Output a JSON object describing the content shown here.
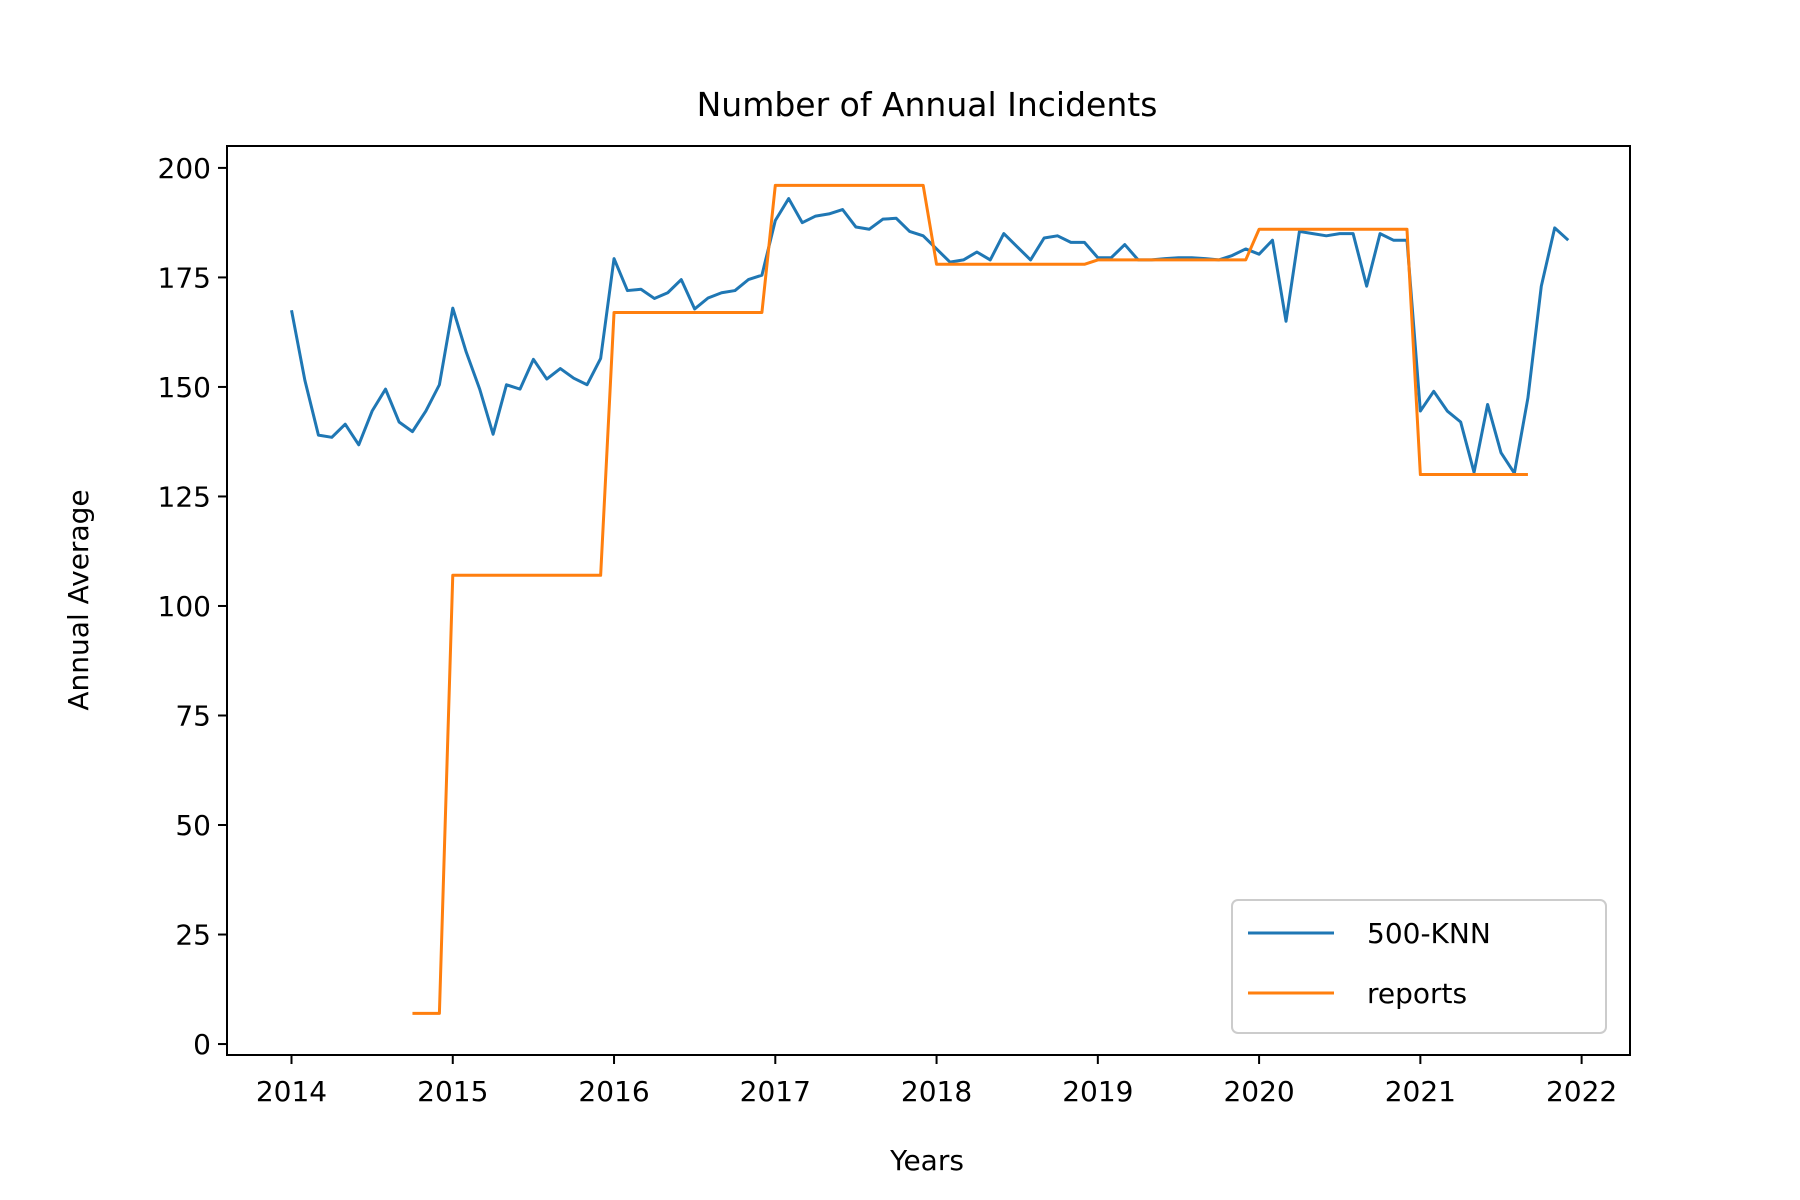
{
  "chart_data": {
    "type": "line",
    "title": "Number of Annual Incidents",
    "xlabel": "Years",
    "ylabel": "Annual Average",
    "xlim": [
      2013.6,
      2022.3
    ],
    "ylim": [
      -2.5,
      205
    ],
    "x_ticks": [
      2014,
      2015,
      2016,
      2017,
      2018,
      2019,
      2020,
      2021,
      2022
    ],
    "y_ticks": [
      0,
      25,
      50,
      75,
      100,
      125,
      150,
      175,
      200
    ],
    "grid": false,
    "legend": {
      "placement": "lower-right"
    },
    "series": [
      {
        "name": "500-KNN",
        "color": "#1f77b4",
        "points": [
          [
            2014.0,
            167.5
          ],
          [
            2014.083,
            151.5
          ],
          [
            2014.167,
            139.0
          ],
          [
            2014.25,
            138.5
          ],
          [
            2014.333,
            141.5
          ],
          [
            2014.417,
            136.8
          ],
          [
            2014.5,
            144.5
          ],
          [
            2014.583,
            149.5
          ],
          [
            2014.667,
            142.0
          ],
          [
            2014.75,
            139.8
          ],
          [
            2014.833,
            144.5
          ],
          [
            2014.917,
            150.5
          ],
          [
            2015.0,
            168.0
          ],
          [
            2015.083,
            158.0
          ],
          [
            2015.167,
            149.5
          ],
          [
            2015.25,
            139.2
          ],
          [
            2015.333,
            150.5
          ],
          [
            2015.417,
            149.5
          ],
          [
            2015.5,
            156.3
          ],
          [
            2015.583,
            151.8
          ],
          [
            2015.667,
            154.2
          ],
          [
            2015.75,
            152.0
          ],
          [
            2015.833,
            150.5
          ],
          [
            2015.917,
            156.5
          ],
          [
            2016.0,
            179.3
          ],
          [
            2016.083,
            172.0
          ],
          [
            2016.167,
            172.3
          ],
          [
            2016.25,
            170.2
          ],
          [
            2016.333,
            171.5
          ],
          [
            2016.417,
            174.5
          ],
          [
            2016.5,
            167.8
          ],
          [
            2016.583,
            170.3
          ],
          [
            2016.667,
            171.5
          ],
          [
            2016.75,
            172.0
          ],
          [
            2016.833,
            174.5
          ],
          [
            2016.917,
            175.5
          ],
          [
            2017.0,
            188.0
          ],
          [
            2017.083,
            193.0
          ],
          [
            2017.167,
            187.5
          ],
          [
            2017.25,
            189.0
          ],
          [
            2017.333,
            189.5
          ],
          [
            2017.417,
            190.5
          ],
          [
            2017.5,
            186.5
          ],
          [
            2017.583,
            186.0
          ],
          [
            2017.667,
            188.3
          ],
          [
            2017.75,
            188.5
          ],
          [
            2017.833,
            185.5
          ],
          [
            2017.917,
            184.5
          ],
          [
            2018.0,
            181.5
          ],
          [
            2018.083,
            178.5
          ],
          [
            2018.167,
            179.0
          ],
          [
            2018.25,
            180.8
          ],
          [
            2018.333,
            179.0
          ],
          [
            2018.417,
            185.0
          ],
          [
            2018.5,
            182.0
          ],
          [
            2018.583,
            179.0
          ],
          [
            2018.667,
            184.0
          ],
          [
            2018.75,
            184.5
          ],
          [
            2018.833,
            183.0
          ],
          [
            2018.917,
            183.0
          ],
          [
            2019.0,
            179.5
          ],
          [
            2019.083,
            179.5
          ],
          [
            2019.167,
            182.5
          ],
          [
            2019.25,
            179.0
          ],
          [
            2019.333,
            179.0
          ],
          [
            2019.417,
            179.3
          ],
          [
            2019.5,
            179.5
          ],
          [
            2019.583,
            179.5
          ],
          [
            2019.667,
            179.3
          ],
          [
            2019.75,
            179.0
          ],
          [
            2019.833,
            180.0
          ],
          [
            2019.917,
            181.5
          ],
          [
            2020.0,
            180.3
          ],
          [
            2020.083,
            183.5
          ],
          [
            2020.167,
            165.0
          ],
          [
            2020.25,
            185.5
          ],
          [
            2020.333,
            185.0
          ],
          [
            2020.417,
            184.5
          ],
          [
            2020.5,
            185.0
          ],
          [
            2020.583,
            185.0
          ],
          [
            2020.667,
            173.0
          ],
          [
            2020.75,
            185.0
          ],
          [
            2020.833,
            183.5
          ],
          [
            2020.917,
            183.5
          ],
          [
            2021.0,
            144.5
          ],
          [
            2021.083,
            149.0
          ],
          [
            2021.167,
            144.5
          ],
          [
            2021.25,
            142.0
          ],
          [
            2021.333,
            130.5
          ],
          [
            2021.417,
            146.0
          ],
          [
            2021.5,
            135.0
          ],
          [
            2021.583,
            130.3
          ],
          [
            2021.667,
            147.5
          ],
          [
            2021.75,
            173.0
          ],
          [
            2021.833,
            186.3
          ],
          [
            2021.917,
            183.5
          ]
        ]
      },
      {
        "name": "reports",
        "color": "#ff7f0e",
        "points": [
          [
            2014.75,
            7
          ],
          [
            2014.917,
            7
          ],
          [
            2015.0,
            107
          ],
          [
            2015.917,
            107
          ],
          [
            2016.0,
            167
          ],
          [
            2016.917,
            167
          ],
          [
            2017.0,
            196
          ],
          [
            2017.917,
            196
          ],
          [
            2018.0,
            178
          ],
          [
            2018.917,
            178
          ],
          [
            2019.0,
            179
          ],
          [
            2019.917,
            179
          ],
          [
            2020.0,
            186
          ],
          [
            2020.917,
            186
          ],
          [
            2021.0,
            130
          ],
          [
            2021.667,
            130
          ]
        ]
      }
    ]
  }
}
